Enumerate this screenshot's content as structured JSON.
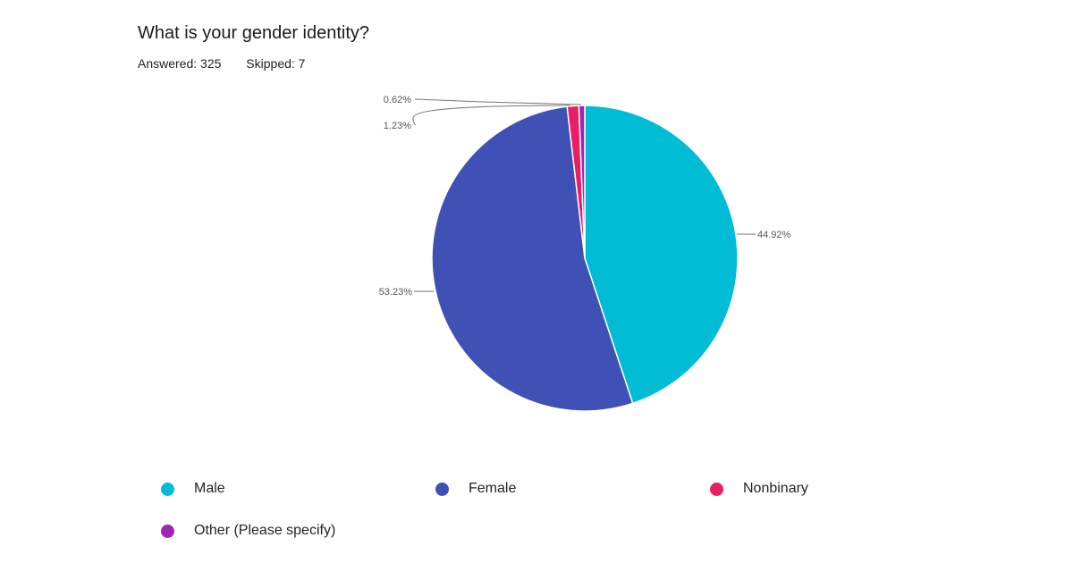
{
  "question": {
    "title": "What is your gender identity?",
    "answered_label": "Answered: 325",
    "skipped_label": "Skipped: 7"
  },
  "chart_data": {
    "type": "pie",
    "title": "What is your gender identity?",
    "slices": [
      {
        "name": "Male",
        "value": 44.92,
        "label": "44.92%",
        "color": "#00BCD4"
      },
      {
        "name": "Female",
        "value": 53.23,
        "label": "53.23%",
        "color": "#3F51B5"
      },
      {
        "name": "Nonbinary",
        "value": 1.23,
        "label": "1.23%",
        "color": "#E91E63"
      },
      {
        "name": "Other (Please specify)",
        "value": 0.62,
        "label": "0.62%",
        "color": "#9C27B0"
      }
    ],
    "legend_position": "bottom"
  }
}
